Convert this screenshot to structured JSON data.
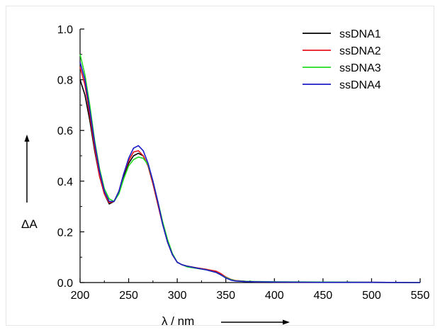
{
  "chart_data": {
    "type": "line",
    "xlabel": "λ / nm",
    "ylabel": "ΔA",
    "xlim": [
      200,
      550
    ],
    "ylim": [
      0.0,
      1.0
    ],
    "x_ticks": [
      "200",
      "250",
      "300",
      "350",
      "400",
      "450",
      "500",
      "550"
    ],
    "y_ticks": [
      "0.0",
      "0.2",
      "0.4",
      "0.6",
      "0.8",
      "1.0"
    ],
    "grid": false,
    "legend_position": "top-right",
    "x": [
      200,
      205,
      210,
      215,
      220,
      225,
      230,
      235,
      240,
      245,
      250,
      255,
      260,
      265,
      270,
      275,
      280,
      285,
      290,
      295,
      300,
      305,
      310,
      320,
      330,
      340,
      345,
      350,
      355,
      360,
      370,
      380,
      400,
      450,
      500,
      550
    ],
    "series": [
      {
        "name": "ssDNA1",
        "color": "#000000",
        "values": [
          0.8,
          0.74,
          0.64,
          0.52,
          0.42,
          0.35,
          0.31,
          0.32,
          0.36,
          0.42,
          0.47,
          0.5,
          0.51,
          0.5,
          0.46,
          0.39,
          0.31,
          0.23,
          0.16,
          0.11,
          0.08,
          0.07,
          0.065,
          0.058,
          0.052,
          0.042,
          0.032,
          0.02,
          0.012,
          0.007,
          0.004,
          0.003,
          0.002,
          0.001,
          0.001,
          0.0
        ]
      },
      {
        "name": "ssDNA2",
        "color": "#e8141c",
        "values": [
          0.85,
          0.78,
          0.66,
          0.53,
          0.42,
          0.35,
          0.315,
          0.32,
          0.36,
          0.43,
          0.48,
          0.515,
          0.52,
          0.5,
          0.46,
          0.39,
          0.31,
          0.23,
          0.16,
          0.11,
          0.08,
          0.07,
          0.065,
          0.058,
          0.052,
          0.045,
          0.035,
          0.022,
          0.013,
          0.008,
          0.005,
          0.003,
          0.002,
          0.001,
          0.001,
          0.0
        ]
      },
      {
        "name": "ssDNA3",
        "color": "#22dd22",
        "values": [
          0.9,
          0.82,
          0.7,
          0.56,
          0.45,
          0.37,
          0.33,
          0.32,
          0.35,
          0.41,
          0.46,
          0.485,
          0.495,
          0.49,
          0.465,
          0.4,
          0.32,
          0.24,
          0.17,
          0.115,
          0.08,
          0.07,
          0.062,
          0.056,
          0.05,
          0.04,
          0.03,
          0.02,
          0.012,
          0.007,
          0.005,
          0.004,
          0.003,
          0.002,
          0.001,
          0.0
        ]
      },
      {
        "name": "ssDNA4",
        "color": "#1c1cc8",
        "values": [
          0.87,
          0.8,
          0.68,
          0.55,
          0.44,
          0.36,
          0.32,
          0.32,
          0.36,
          0.43,
          0.49,
          0.53,
          0.54,
          0.52,
          0.47,
          0.4,
          0.32,
          0.23,
          0.16,
          0.11,
          0.08,
          0.07,
          0.065,
          0.057,
          0.05,
          0.04,
          0.03,
          0.018,
          0.01,
          0.006,
          0.004,
          0.003,
          0.002,
          0.001,
          0.001,
          0.0
        ]
      }
    ]
  }
}
